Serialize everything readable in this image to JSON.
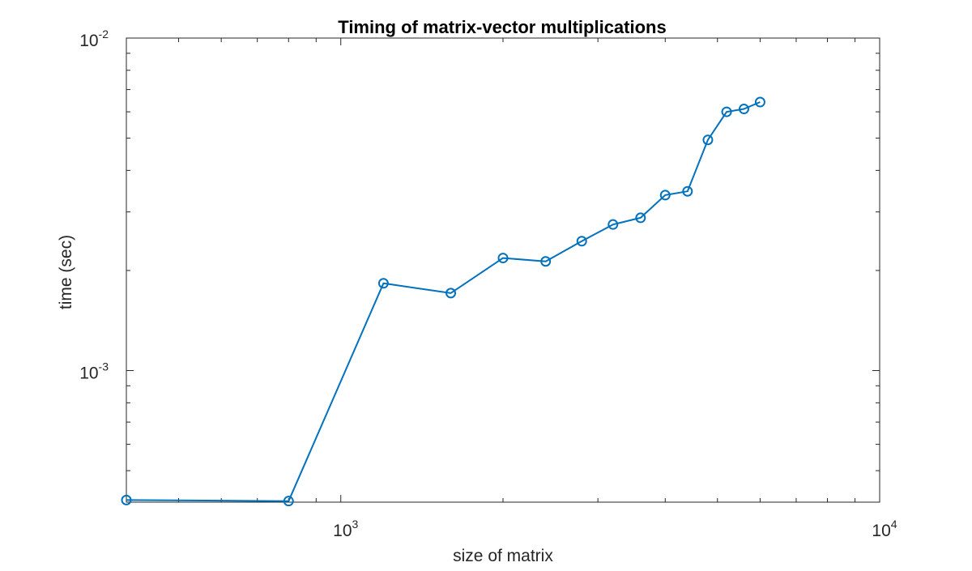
{
  "chart_data": {
    "type": "line",
    "title": "Timing of matrix-vector multiplications",
    "xlabel": "size of matrix",
    "ylabel": "time (sec)",
    "xscale": "log",
    "yscale": "log",
    "xlim": [
      400,
      10000
    ],
    "ylim": [
      0.000402,
      0.01
    ],
    "grid": false,
    "legend": "none",
    "line_color": "#0072BD",
    "marker": "circle",
    "x_ticks": [
      {
        "value": 1000,
        "base": "10",
        "exp": "3"
      },
      {
        "value": 10000,
        "base": "10",
        "exp": "4"
      }
    ],
    "y_ticks": [
      {
        "value": 0.001,
        "base": "10",
        "exp": "-3"
      },
      {
        "value": 0.01,
        "base": "10",
        "exp": "-2"
      }
    ],
    "series": [
      {
        "x": [
          400,
          800,
          1200,
          1600,
          2000,
          2400,
          2800,
          3200,
          3600,
          4000,
          4400,
          4800,
          5200,
          5600,
          6000
        ],
        "y": [
          0.000408,
          0.000405,
          0.00183,
          0.00171,
          0.00218,
          0.00213,
          0.00245,
          0.00275,
          0.00288,
          0.00337,
          0.00346,
          0.00494,
          0.006,
          0.00612,
          0.00642
        ]
      }
    ]
  }
}
